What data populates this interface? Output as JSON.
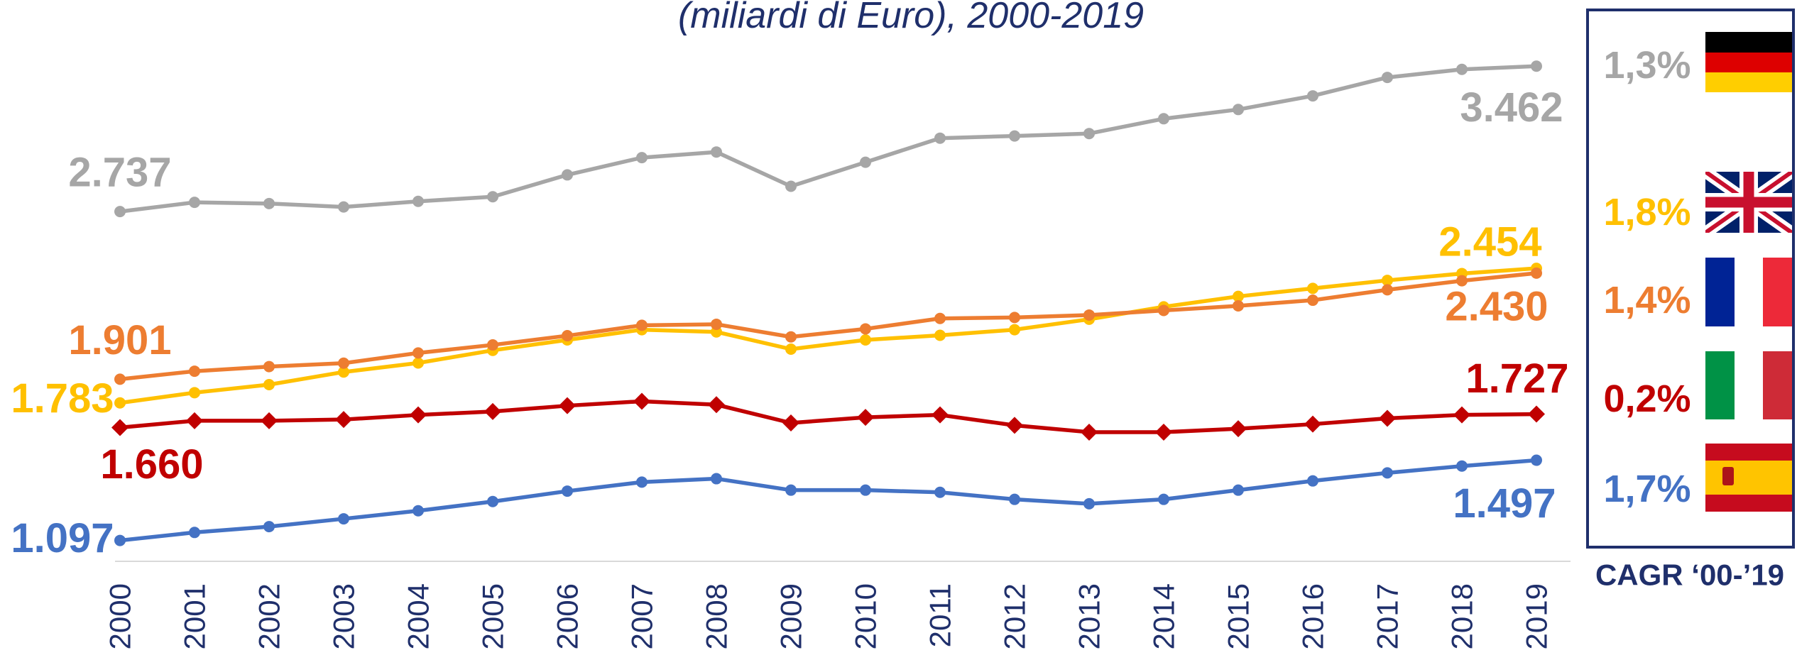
{
  "chart_data": {
    "type": "line",
    "title": "(miliardi di Euro), 2000-2019",
    "categories": [
      "2000",
      "2001",
      "2002",
      "2003",
      "2004",
      "2005",
      "2006",
      "2007",
      "2008",
      "2009",
      "2010",
      "2011",
      "2012",
      "2013",
      "2014",
      "2015",
      "2016",
      "2017",
      "2018",
      "2019"
    ],
    "ylim": [
      1000,
      3700
    ],
    "cagr_label": "CAGR ‘00-’19",
    "series": [
      {
        "color": "#a6a6a6",
        "marker": "circle",
        "cagr": "1,3%",
        "values": [
          2737,
          2783,
          2777,
          2760,
          2788,
          2811,
          2920,
          3006,
          3034,
          2863,
          2983,
          3103,
          3114,
          3126,
          3200,
          3246,
          3314,
          3406,
          3446,
          3462
        ],
        "value_labels": [
          "2.737",
          null,
          null,
          null,
          null,
          null,
          null,
          null,
          null,
          null,
          null,
          null,
          null,
          null,
          null,
          null,
          null,
          null,
          null,
          "3.462"
        ]
      },
      {
        "color": "#ffc000",
        "marker": "circle",
        "cagr": "1,8%",
        "values": [
          1783,
          1834,
          1874,
          1937,
          1982,
          2045,
          2097,
          2148,
          2137,
          2051,
          2097,
          2120,
          2148,
          2200,
          2262,
          2314,
          2354,
          2394,
          2428,
          2454
        ],
        "value_labels": [
          "1.783",
          null,
          null,
          null,
          null,
          null,
          null,
          null,
          null,
          null,
          null,
          null,
          null,
          null,
          null,
          null,
          null,
          null,
          null,
          "2.454"
        ]
      },
      {
        "color": "#ed7d31",
        "marker": "circle",
        "cagr": "1,4%",
        "values": [
          1901,
          1941,
          1964,
          1981,
          2032,
          2072,
          2118,
          2170,
          2175,
          2112,
          2152,
          2204,
          2209,
          2221,
          2244,
          2267,
          2295,
          2347,
          2392,
          2430
        ],
        "value_labels": [
          "1.901",
          null,
          null,
          null,
          null,
          null,
          null,
          null,
          null,
          null,
          null,
          null,
          null,
          null,
          null,
          null,
          null,
          null,
          null,
          "2.430"
        ]
      },
      {
        "color": "#c00000",
        "marker": "diamond",
        "cagr": "0,2%",
        "values": [
          1660,
          1694,
          1694,
          1700,
          1723,
          1740,
          1769,
          1791,
          1774,
          1683,
          1711,
          1723,
          1671,
          1637,
          1637,
          1654,
          1677,
          1706,
          1723,
          1727
        ],
        "value_labels": [
          "1.660",
          null,
          null,
          null,
          null,
          null,
          null,
          null,
          null,
          null,
          null,
          null,
          null,
          null,
          null,
          null,
          null,
          null,
          null,
          "1.727"
        ]
      },
      {
        "color": "#4472c4",
        "marker": "circle",
        "cagr": "1,7%",
        "values": [
          1097,
          1137,
          1166,
          1205,
          1245,
          1291,
          1343,
          1388,
          1405,
          1348,
          1348,
          1337,
          1302,
          1280,
          1302,
          1348,
          1394,
          1434,
          1468,
          1497
        ],
        "value_labels": [
          "1.097",
          null,
          null,
          null,
          null,
          null,
          null,
          null,
          null,
          null,
          null,
          null,
          null,
          null,
          null,
          null,
          null,
          null,
          null,
          "1.497"
        ]
      }
    ]
  }
}
